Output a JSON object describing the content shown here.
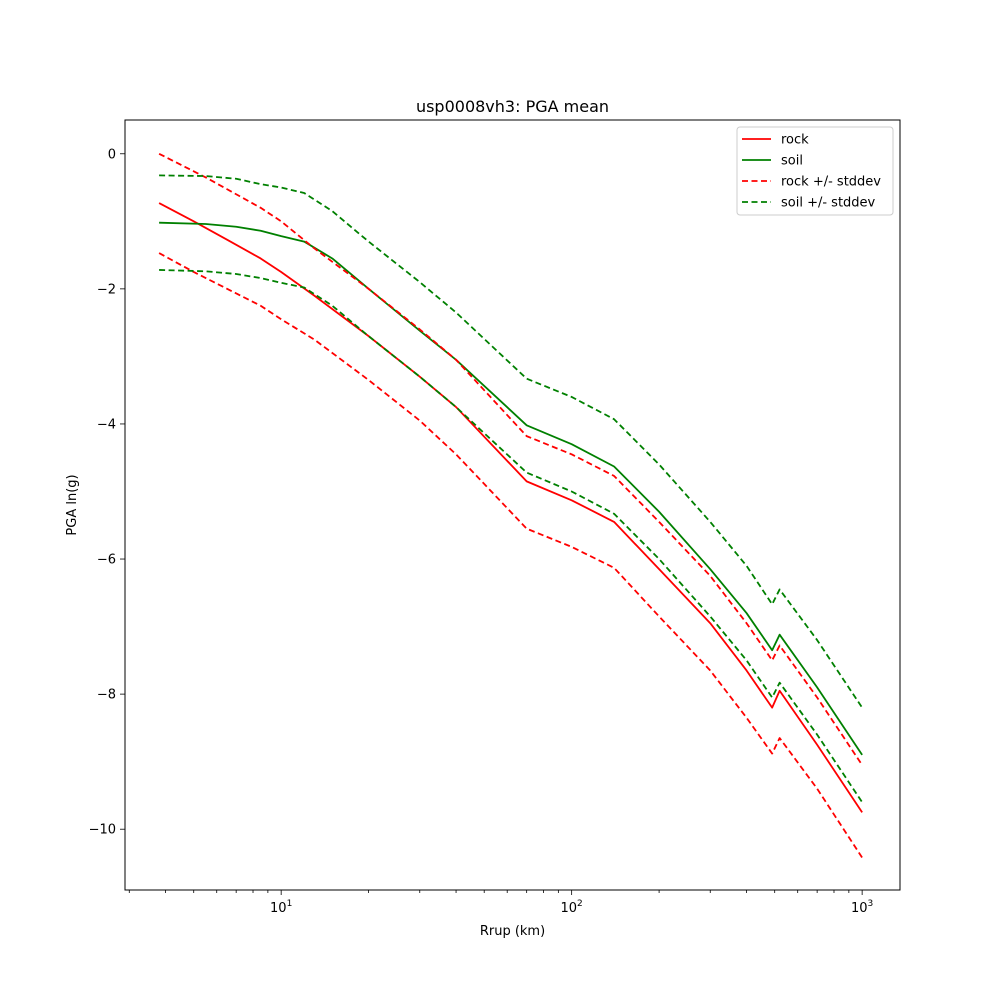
{
  "chart_data": {
    "type": "line",
    "title": "usp0008vh3: PGA mean",
    "xlabel": "Rrup (km)",
    "ylabel": "PGA ln(g)",
    "xscale": "log",
    "xlim": [
      2.9,
      1350
    ],
    "ylim": [
      -10.9,
      0.5
    ],
    "xticks": [
      {
        "value": 10,
        "base": "10",
        "exp": "1"
      },
      {
        "value": 100,
        "base": "10",
        "exp": "2"
      },
      {
        "value": 1000,
        "base": "10",
        "exp": "3"
      }
    ],
    "yticks": [
      {
        "value": 0,
        "label": "0"
      },
      {
        "value": -2,
        "label": "−2"
      },
      {
        "value": -4,
        "label": "−4"
      },
      {
        "value": -6,
        "label": "−6"
      },
      {
        "value": -8,
        "label": "−8"
      },
      {
        "value": -10,
        "label": "−10"
      }
    ],
    "grid": false,
    "legend_position": "top-right",
    "series": [
      {
        "name": "rock",
        "color": "#ff0000",
        "dash": "solid",
        "points": [
          [
            3.8,
            -0.73
          ],
          [
            5,
            -1.0
          ],
          [
            6.5,
            -1.27
          ],
          [
            8.5,
            -1.55
          ],
          [
            10,
            -1.75
          ],
          [
            13,
            -2.1
          ],
          [
            20,
            -2.7
          ],
          [
            30,
            -3.3
          ],
          [
            40,
            -3.75
          ],
          [
            70,
            -4.85
          ],
          [
            100,
            -5.13
          ],
          [
            140,
            -5.45
          ],
          [
            200,
            -6.15
          ],
          [
            300,
            -6.95
          ],
          [
            400,
            -7.65
          ],
          [
            490,
            -8.2
          ],
          [
            520,
            -7.95
          ],
          [
            700,
            -8.75
          ],
          [
            1000,
            -9.75
          ]
        ]
      },
      {
        "name": "soil",
        "color": "#008000",
        "dash": "solid",
        "points": [
          [
            3.8,
            -1.02
          ],
          [
            5.5,
            -1.04
          ],
          [
            7,
            -1.08
          ],
          [
            8.5,
            -1.14
          ],
          [
            10,
            -1.22
          ],
          [
            12,
            -1.3
          ],
          [
            15,
            -1.55
          ],
          [
            20,
            -2.0
          ],
          [
            30,
            -2.62
          ],
          [
            40,
            -3.05
          ],
          [
            70,
            -4.02
          ],
          [
            100,
            -4.3
          ],
          [
            140,
            -4.63
          ],
          [
            200,
            -5.3
          ],
          [
            300,
            -6.15
          ],
          [
            400,
            -6.8
          ],
          [
            490,
            -7.35
          ],
          [
            520,
            -7.12
          ],
          [
            700,
            -7.9
          ],
          [
            1000,
            -8.9
          ]
        ]
      },
      {
        "name": "rock +/- stddev",
        "color": "#ff0000",
        "dash": "dashed",
        "points": [
          [
            3.8,
            0.0
          ],
          [
            5.5,
            -0.35
          ],
          [
            8.5,
            -0.8
          ],
          [
            10,
            -1.0
          ],
          [
            13,
            -1.4
          ],
          [
            20,
            -2.0
          ],
          [
            30,
            -2.6
          ],
          [
            40,
            -3.05
          ],
          [
            70,
            -4.18
          ],
          [
            100,
            -4.45
          ],
          [
            140,
            -4.77
          ],
          [
            200,
            -5.45
          ],
          [
            300,
            -6.25
          ],
          [
            400,
            -6.95
          ],
          [
            490,
            -7.5
          ],
          [
            520,
            -7.28
          ],
          [
            700,
            -8.05
          ],
          [
            1000,
            -9.05
          ]
        ]
      },
      {
        "name": "",
        "color": "#ff0000",
        "dash": "dashed",
        "points": [
          [
            3.8,
            -1.47
          ],
          [
            5,
            -1.75
          ],
          [
            8.5,
            -2.25
          ],
          [
            10,
            -2.45
          ],
          [
            13,
            -2.75
          ],
          [
            20,
            -3.35
          ],
          [
            30,
            -3.95
          ],
          [
            40,
            -4.45
          ],
          [
            70,
            -5.55
          ],
          [
            100,
            -5.82
          ],
          [
            140,
            -6.13
          ],
          [
            200,
            -6.85
          ],
          [
            300,
            -7.65
          ],
          [
            400,
            -8.35
          ],
          [
            490,
            -8.88
          ],
          [
            520,
            -8.65
          ],
          [
            700,
            -9.4
          ],
          [
            1000,
            -10.42
          ]
        ]
      },
      {
        "name": "soil +/- stddev",
        "color": "#008000",
        "dash": "dashed",
        "points": [
          [
            3.8,
            -0.32
          ],
          [
            5.5,
            -0.33
          ],
          [
            7,
            -0.37
          ],
          [
            8.5,
            -0.45
          ],
          [
            10,
            -0.5
          ],
          [
            12,
            -0.58
          ],
          [
            15,
            -0.85
          ],
          [
            20,
            -1.3
          ],
          [
            30,
            -1.9
          ],
          [
            40,
            -2.35
          ],
          [
            70,
            -3.33
          ],
          [
            100,
            -3.6
          ],
          [
            140,
            -3.93
          ],
          [
            200,
            -4.6
          ],
          [
            300,
            -5.45
          ],
          [
            400,
            -6.1
          ],
          [
            490,
            -6.67
          ],
          [
            520,
            -6.45
          ],
          [
            700,
            -7.2
          ],
          [
            1000,
            -8.2
          ]
        ]
      },
      {
        "name": "",
        "color": "#008000",
        "dash": "dashed",
        "points": [
          [
            3.8,
            -1.72
          ],
          [
            5.5,
            -1.74
          ],
          [
            7,
            -1.78
          ],
          [
            8.5,
            -1.84
          ],
          [
            10,
            -1.91
          ],
          [
            12,
            -1.98
          ],
          [
            15,
            -2.25
          ],
          [
            20,
            -2.7
          ],
          [
            30,
            -3.3
          ],
          [
            40,
            -3.75
          ],
          [
            70,
            -4.72
          ],
          [
            100,
            -5.0
          ],
          [
            140,
            -5.33
          ],
          [
            200,
            -6.0
          ],
          [
            300,
            -6.85
          ],
          [
            400,
            -7.5
          ],
          [
            490,
            -8.05
          ],
          [
            520,
            -7.83
          ],
          [
            700,
            -8.6
          ],
          [
            1000,
            -9.6
          ]
        ]
      }
    ]
  }
}
